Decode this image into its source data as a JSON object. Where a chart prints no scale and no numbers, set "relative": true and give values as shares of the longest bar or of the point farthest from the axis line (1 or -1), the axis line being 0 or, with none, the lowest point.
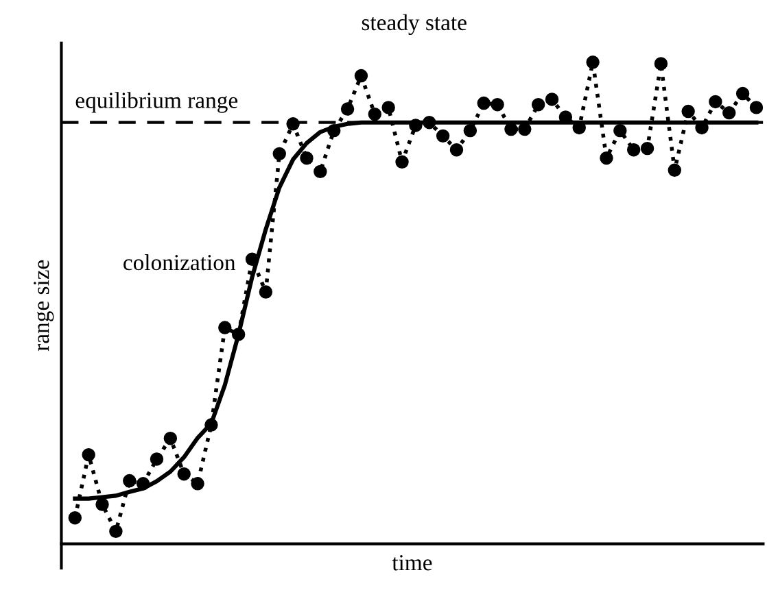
{
  "chart_data": {
    "type": "line",
    "relative": true,
    "title": "steady state",
    "xlabel": "time",
    "ylabel": "range size",
    "categories": [
      null,
      null,
      null,
      null,
      null,
      null,
      null,
      null,
      null,
      null,
      null,
      null,
      null,
      null,
      null,
      null,
      null,
      null,
      null,
      null,
      null,
      null,
      null,
      null,
      null,
      null,
      null,
      null,
      null,
      null,
      null,
      null,
      null,
      null,
      null,
      null,
      null,
      null,
      null,
      null,
      null,
      null,
      null,
      null,
      null,
      null,
      null,
      null,
      null,
      null,
      null
    ],
    "series": [
      {
        "color": "#000000",
        "marker": "circle",
        "line_style": "dotted",
        "values": [
          0.054,
          0.185,
          0.082,
          0.026,
          0.131,
          0.125,
          0.176,
          0.219,
          0.145,
          0.125,
          0.247,
          0.449,
          0.435,
          0.591,
          0.523,
          0.81,
          0.872,
          0.801,
          0.773,
          0.858,
          0.903,
          0.972,
          0.892,
          0.906,
          0.793,
          0.869,
          0.875,
          0.847,
          0.818,
          0.858,
          0.915,
          0.912,
          0.861,
          0.861,
          0.912,
          0.923,
          0.886,
          0.864,
          1.0,
          0.801,
          0.858,
          0.818,
          0.821,
          0.997,
          0.776,
          0.898,
          0.864,
          0.918,
          0.895,
          0.935,
          0.906
        ]
      },
      {
        "color": "#000000",
        "marker": "none",
        "line_style": "solid",
        "values": [
          0.094,
          0.094,
          0.097,
          0.1,
          0.108,
          0.115,
          0.13,
          0.15,
          0.18,
          0.22,
          0.25,
          0.33,
          0.435,
          0.554,
          0.653,
          0.74,
          0.798,
          0.832,
          0.855,
          0.866,
          0.872,
          0.875,
          0.875,
          0.875,
          0.875,
          0.875,
          0.875,
          0.875,
          0.875,
          0.875,
          0.875,
          0.875,
          0.875,
          0.875,
          0.875,
          0.875,
          0.875,
          0.875,
          0.875,
          0.875,
          0.875,
          0.875,
          0.875,
          0.875,
          0.875,
          0.875,
          0.875,
          0.875,
          0.875,
          0.875,
          0.875
        ]
      }
    ],
    "ref_lines": [
      {
        "axis": "y",
        "value": 0.875,
        "label": "equilibrium range",
        "color": "#000000",
        "line_style": "dashed"
      }
    ],
    "annotations": [
      "colonization"
    ],
    "grid": false,
    "legend": false
  }
}
